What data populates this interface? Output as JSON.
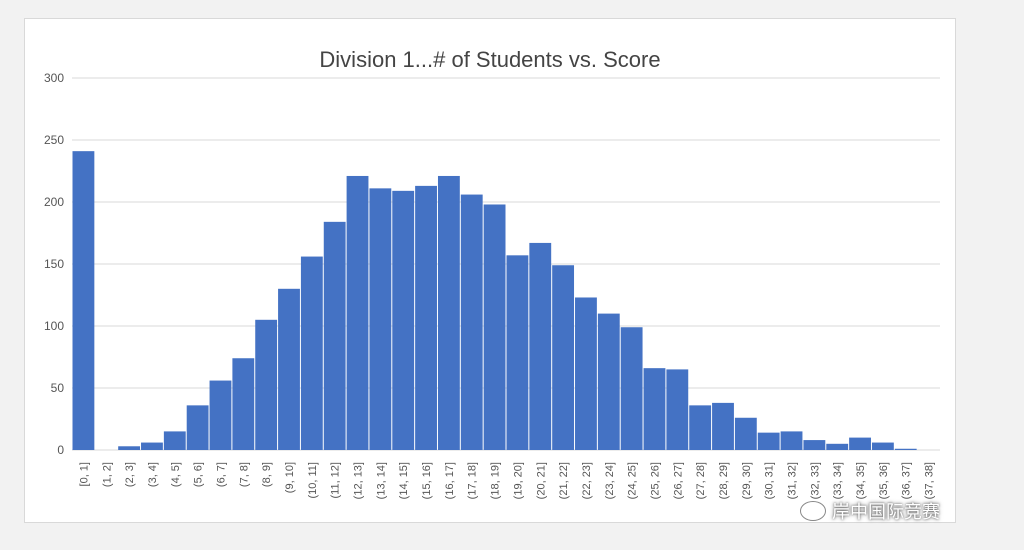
{
  "chart_data": {
    "type": "bar",
    "title": "Division 1...# of Students vs. Score",
    "xlabel": "",
    "ylabel": "",
    "ylim": [
      0,
      300
    ],
    "yticks": [
      0,
      50,
      100,
      150,
      200,
      250,
      300
    ],
    "grid": true,
    "legend": "none",
    "bar_color": "#4472c4",
    "categories": [
      "[0, 1]",
      "(1, 2]",
      "(2, 3]",
      "(3, 4]",
      "(4, 5]",
      "(5, 6]",
      "(6, 7]",
      "(7, 8]",
      "(8, 9]",
      "(9, 10]",
      "(10, 11]",
      "(11, 12]",
      "(12, 13]",
      "(13, 14]",
      "(14, 15]",
      "(15, 16]",
      "(16, 17]",
      "(17, 18]",
      "(18, 19]",
      "(19, 20]",
      "(20, 21]",
      "(21, 22]",
      "(22, 23]",
      "(23, 24]",
      "(24, 25]",
      "(25, 26]",
      "(26, 27]",
      "(27, 28]",
      "(28, 29]",
      "(29, 30]",
      "(30, 31]",
      "(31, 32]",
      "(32, 33]",
      "(33, 34]",
      "(34, 35]",
      "(35, 36]",
      "(36, 37]",
      "(37, 38]"
    ],
    "values": [
      241,
      0,
      3,
      6,
      15,
      36,
      56,
      74,
      105,
      130,
      156,
      184,
      221,
      211,
      209,
      213,
      221,
      206,
      198,
      157,
      167,
      149,
      123,
      110,
      99,
      66,
      65,
      36,
      38,
      26,
      14,
      15,
      8,
      5,
      10,
      6,
      1,
      0
    ]
  },
  "watermark": {
    "icon": "wechat-icon",
    "text": "岸中国际竞赛"
  }
}
